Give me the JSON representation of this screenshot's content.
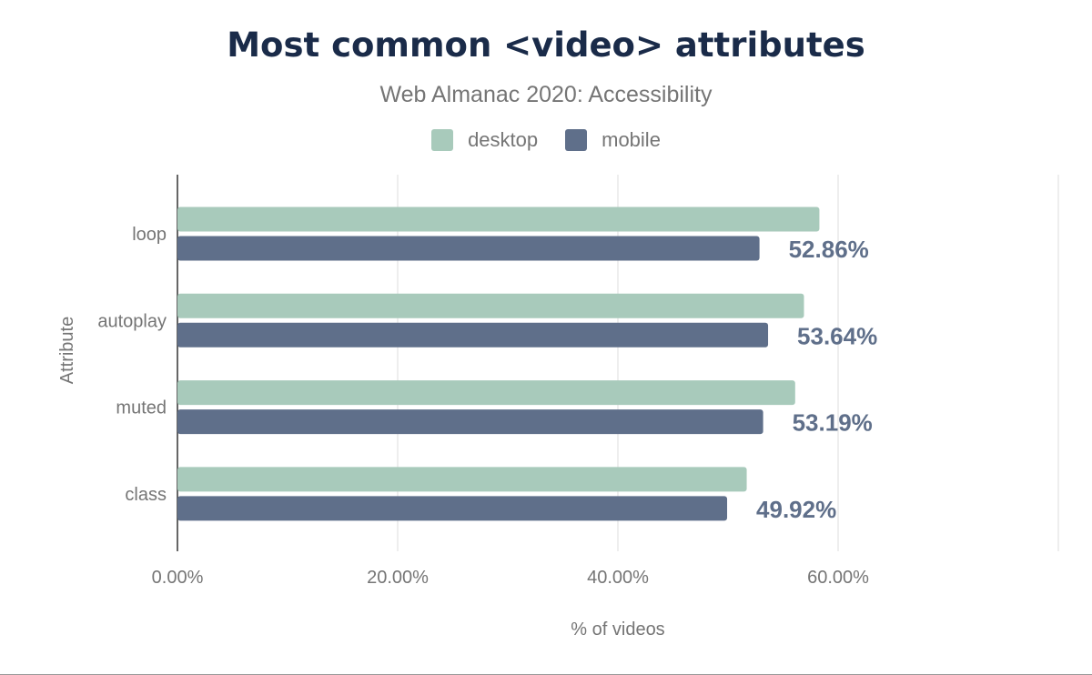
{
  "chart_data": {
    "type": "bar",
    "orientation": "horizontal",
    "title": "Most common <video> attributes",
    "subtitle": "Web Almanac 2020: Accessibility",
    "xlabel": "% of videos",
    "ylabel": "Attribute",
    "categories": [
      "loop",
      "autoplay",
      "muted",
      "class"
    ],
    "series": [
      {
        "name": "desktop",
        "color": "#a8cabb",
        "values": [
          58.3,
          56.9,
          56.1,
          51.7
        ]
      },
      {
        "name": "mobile",
        "color": "#5f6f8a",
        "values": [
          52.86,
          53.64,
          53.19,
          49.92
        ],
        "data_labels": [
          "52.86%",
          "53.64%",
          "53.19%",
          "49.92%"
        ]
      }
    ],
    "xlim": [
      0,
      80
    ],
    "xticks": [
      0,
      20,
      40,
      60,
      80
    ],
    "xtick_labels": [
      "0.00%",
      "20.00%",
      "40.00%",
      "60.00%",
      ""
    ],
    "grid": true,
    "legend_position": "top"
  }
}
